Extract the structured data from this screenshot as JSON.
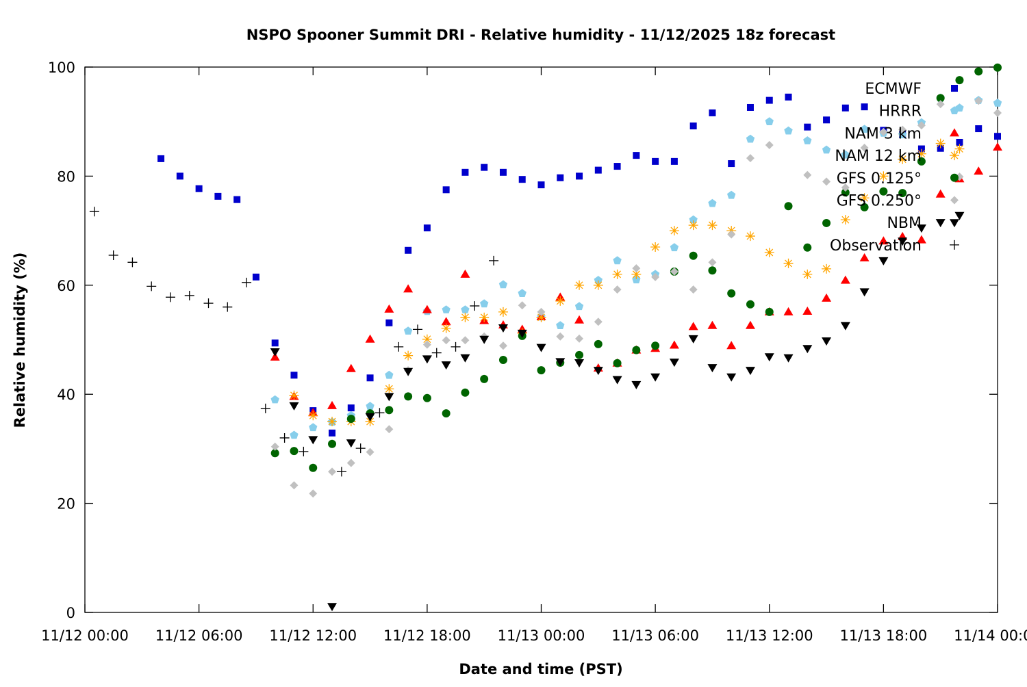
{
  "chart_data": {
    "type": "scatter",
    "title": "NSPO Spooner Summit DRI - Relative humidity - 11/12/2025 18z forecast",
    "xlabel": "Date and time (PST)",
    "ylabel": "Relative humidity (%)",
    "x_units": "hours since 11/12 00:00 PST",
    "xlim": [
      0,
      48
    ],
    "ylim": [
      0,
      100
    ],
    "x_ticks": [
      {
        "value": 0,
        "label": "11/12 00:00"
      },
      {
        "value": 6,
        "label": "11/12 06:00"
      },
      {
        "value": 12,
        "label": "11/12 12:00"
      },
      {
        "value": 18,
        "label": "11/12 18:00"
      },
      {
        "value": 24,
        "label": "11/13 00:00"
      },
      {
        "value": 30,
        "label": "11/13 06:00"
      },
      {
        "value": 36,
        "label": "11/13 12:00"
      },
      {
        "value": 42,
        "label": "11/13 18:00"
      },
      {
        "value": 48,
        "label": "11/14 00:00"
      }
    ],
    "y_ticks": [
      {
        "value": 0,
        "label": "0"
      },
      {
        "value": 20,
        "label": "20"
      },
      {
        "value": 40,
        "label": "40"
      },
      {
        "value": 60,
        "label": "60"
      },
      {
        "value": 80,
        "label": "80"
      },
      {
        "value": 100,
        "label": "100"
      }
    ],
    "grid": false,
    "legend_placement": "top-right",
    "series": [
      {
        "name": "ECMWF",
        "marker": "square",
        "color": "#0000cc",
        "x_start": 4,
        "x_step": 1,
        "values": [
          83.2,
          80.0,
          77.7,
          76.3,
          75.7,
          61.5,
          49.4,
          43.5,
          37.0,
          32.9,
          37.5,
          43.0,
          53.1,
          66.4,
          70.5,
          77.5,
          80.7,
          81.6,
          80.7,
          79.4,
          78.4,
          79.7,
          80.0,
          81.1,
          81.8,
          83.8,
          82.7,
          82.7,
          89.2,
          91.6,
          82.3,
          92.6,
          93.9,
          94.5,
          89.0,
          90.3,
          92.5,
          92.7,
          88.4,
          87.6,
          85.0,
          85.1,
          86.2,
          88.7,
          87.3
        ]
      },
      {
        "name": "HRRR",
        "marker": "pentagon",
        "color": "#87ceeb",
        "x_start": 10,
        "x_step": 1,
        "values": [
          39.0,
          32.5,
          33.9,
          34.9,
          36.1,
          37.8,
          43.5,
          51.6,
          55.2,
          55.5,
          55.5,
          56.6,
          60.1,
          58.5,
          54.2,
          52.6,
          56.1,
          60.9,
          64.5,
          61.0,
          62.0,
          66.9,
          72.0,
          75.0,
          76.5,
          86.8,
          90.0,
          88.3,
          86.5,
          84.8,
          83.9,
          88.6,
          87.9,
          87.6,
          89.8,
          94.3,
          92.5,
          93.9,
          93.4
        ]
      },
      {
        "name": "NAM 3 km",
        "marker": "triangle-up",
        "color": "#ff0000",
        "x_start": 10,
        "x_step": 1,
        "values": [
          46.8,
          39.6,
          36.6,
          37.9,
          44.7,
          50.1,
          55.6,
          59.3,
          55.5,
          53.3,
          62.0,
          53.5,
          52.7,
          51.9,
          54.2,
          57.8,
          53.6,
          44.8,
          45.7,
          48.1,
          48.4,
          49.0,
          52.4,
          52.6,
          48.9,
          52.6,
          55.1,
          55.1,
          55.2,
          57.6,
          60.9,
          65.0,
          68.1,
          68.9,
          68.3,
          76.7,
          79.5,
          80.9,
          85.3
        ]
      },
      {
        "name": "NAM 12 km",
        "marker": "star",
        "color": "#ffa500",
        "x_start": 11,
        "x_step": 1,
        "values": [
          39.8,
          36.1,
          35.0,
          35.0,
          35.0,
          41.0,
          47.1,
          50.1,
          52.1,
          54.1,
          54.1,
          55.1,
          51.2,
          54.1,
          57.1,
          60.0,
          60.0,
          62.0,
          62.0,
          67.0,
          70.0,
          71.0,
          71.0,
          70.0,
          69.0,
          66.0,
          64.0,
          62.0,
          63.0,
          72.0,
          76.0,
          80.0,
          83.1,
          84.1,
          86.0,
          85.0
        ]
      },
      {
        "name": "GFS 0.125°",
        "marker": "circle",
        "color": "#006400",
        "x_start": 10,
        "x_step": 1,
        "values": [
          29.2,
          29.6,
          26.5,
          30.9,
          35.5,
          36.5,
          37.1,
          39.6,
          39.3,
          36.5,
          40.3,
          42.8,
          46.3,
          50.7,
          44.4,
          45.8,
          47.2,
          49.2,
          45.7,
          48.1,
          48.9,
          62.5,
          65.4,
          62.7,
          58.5,
          56.5,
          55.1,
          74.5,
          66.9,
          71.4,
          77.0,
          74.3,
          77.2,
          76.9,
          82.7,
          94.3,
          97.6,
          99.2,
          99.9
        ]
      },
      {
        "name": "GFS 0.250°",
        "marker": "diamond",
        "color": "#c0c0c0",
        "x_start": 10,
        "x_step": 1,
        "values": [
          30.4,
          23.3,
          21.8,
          25.8,
          27.4,
          29.4,
          33.6,
          44.4,
          49.1,
          49.9,
          49.9,
          50.6,
          48.9,
          56.3,
          55.1,
          50.6,
          50.2,
          53.3,
          59.2,
          63.1,
          61.5,
          62.5,
          59.2,
          64.2,
          69.3,
          83.3,
          85.7,
          null,
          80.2,
          79.0,
          77.9,
          85.2,
          88.1,
          88.5,
          89.3,
          93.2,
          79.9,
          93.8,
          91.6
        ]
      },
      {
        "name": "NBM",
        "marker": "triangle-down",
        "color": "#000000",
        "x_start": 10,
        "x_step": 1,
        "values": [
          47.8,
          37.9,
          31.7,
          1.1,
          31.1,
          35.9,
          39.6,
          44.2,
          46.5,
          45.4,
          46.7,
          50.1,
          52.2,
          51.2,
          48.6,
          46.0,
          45.8,
          44.4,
          42.7,
          41.8,
          43.2,
          45.9,
          50.2,
          44.9,
          43.2,
          44.4,
          46.9,
          46.7,
          48.4,
          49.8,
          52.6,
          58.8,
          64.5,
          68.1,
          70.5,
          71.5,
          72.8
        ]
      },
      {
        "name": "Observation",
        "marker": "plus",
        "color": "#000000",
        "x_start": 0.5,
        "x_step": 1,
        "values": [
          73.5,
          65.5,
          64.2,
          59.8,
          57.8,
          58.1,
          56.7,
          56.0,
          60.5,
          37.4,
          32.0,
          29.5,
          null,
          25.8,
          30.1,
          36.6,
          48.7,
          51.9,
          47.6,
          48.7,
          56.2,
          64.5
        ]
      }
    ]
  }
}
